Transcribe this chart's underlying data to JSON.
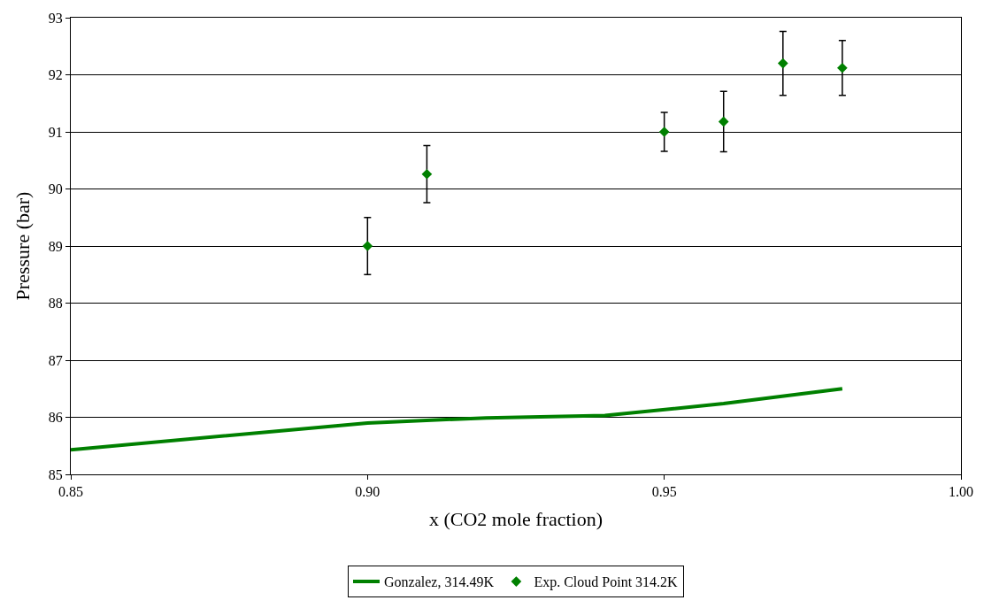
{
  "chart_data": {
    "type": "line",
    "xlabel": "x (CO2 mole fraction)",
    "ylabel": "Pressure (bar)",
    "xlim": [
      0.85,
      1.0
    ],
    "xticks": [
      {
        "value": 0.85,
        "label": "0.85"
      },
      {
        "value": 0.9,
        "label": "0.90"
      },
      {
        "value": 0.95,
        "label": "0.95"
      },
      {
        "value": 1.0,
        "label": "1.00"
      }
    ],
    "ylim": [
      85,
      93
    ],
    "yticks": [
      85,
      86,
      87,
      88,
      89,
      90,
      91,
      92,
      93
    ],
    "grid": "y",
    "legend": "bottom",
    "series": [
      {
        "name": "Gonzalez, 314.49K",
        "color": "#008000",
        "marker": "none",
        "line_style": "solid",
        "x": [
          0.85,
          0.9,
          0.92,
          0.94,
          0.96,
          0.98
        ],
        "values": [
          85.43,
          85.9,
          85.99,
          86.03,
          86.24,
          86.5
        ]
      },
      {
        "name": "Exp. Cloud Point 314.2K",
        "type": "scatter",
        "color": "#008000",
        "marker": "diamond",
        "x": [
          0.9,
          0.91,
          0.95,
          0.96,
          0.97,
          0.98
        ],
        "values": [
          89.0,
          90.26,
          91.0,
          91.18,
          92.2,
          92.12
        ],
        "errors": [
          0.5,
          0.5,
          0.34,
          0.53,
          0.56,
          0.48
        ]
      }
    ]
  }
}
